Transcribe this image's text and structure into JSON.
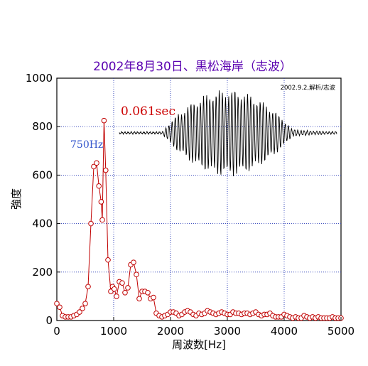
{
  "chart_data": {
    "type": "line",
    "title": "2002年8月30日、黒松海岸（志波）",
    "credit": "2002.9.2,解析/志波",
    "xlabel": "周波数[Hz]",
    "ylabel": "強度",
    "xlim": [
      0,
      5000
    ],
    "ylim": [
      0,
      1000
    ],
    "xticks": [
      0,
      1000,
      2000,
      3000,
      4000,
      5000
    ],
    "yticks": [
      0,
      200,
      400,
      600,
      800,
      1000
    ],
    "xtick_labels": [
      "0",
      "1000",
      "2000",
      "3000",
      "4000",
      "5000"
    ],
    "ytick_labels": [
      "0",
      "200",
      "400",
      "600",
      "800",
      "1000"
    ],
    "grid": true,
    "grid_style": "dotted",
    "grid_color": "#2a3cb8",
    "series": [
      {
        "color": "#c00000",
        "marker": "open-circle",
        "x": [
          0,
          50,
          100,
          150,
          200,
          250,
          300,
          350,
          400,
          450,
          500,
          550,
          600,
          650,
          700,
          740,
          780,
          800,
          830,
          860,
          900,
          950,
          980,
          1010,
          1050,
          1100,
          1150,
          1200,
          1250,
          1300,
          1350,
          1400,
          1450,
          1500,
          1550,
          1600,
          1650,
          1700,
          1750,
          1800,
          1850,
          1900,
          1950,
          2000,
          2050,
          2100,
          2150,
          2200,
          2250,
          2300,
          2350,
          2400,
          2450,
          2500,
          2550,
          2600,
          2650,
          2700,
          2750,
          2800,
          2850,
          2900,
          2950,
          3000,
          3050,
          3100,
          3150,
          3200,
          3250,
          3300,
          3350,
          3400,
          3450,
          3500,
          3550,
          3600,
          3650,
          3700,
          3750,
          3800,
          3850,
          3900,
          3950,
          4000,
          4050,
          4100,
          4150,
          4200,
          4250,
          4300,
          4350,
          4400,
          4450,
          4500,
          4550,
          4600,
          4650,
          4700,
          4750,
          4800,
          4850,
          4900,
          4950,
          5000
        ],
        "values": [
          70,
          55,
          20,
          15,
          15,
          15,
          20,
          25,
          35,
          50,
          70,
          140,
          400,
          635,
          650,
          555,
          490,
          415,
          825,
          620,
          250,
          120,
          140,
          130,
          100,
          160,
          155,
          115,
          135,
          230,
          240,
          190,
          90,
          120,
          120,
          115,
          90,
          95,
          30,
          20,
          15,
          20,
          25,
          35,
          35,
          30,
          20,
          25,
          35,
          40,
          35,
          25,
          20,
          30,
          25,
          30,
          40,
          35,
          30,
          25,
          30,
          35,
          30,
          25,
          25,
          35,
          30,
          30,
          25,
          30,
          30,
          25,
          30,
          35,
          25,
          20,
          25,
          25,
          30,
          20,
          15,
          15,
          15,
          25,
          20,
          15,
          10,
          15,
          10,
          10,
          20,
          15,
          10,
          15,
          10,
          15,
          10,
          10,
          10,
          10,
          15,
          10,
          10,
          10
        ]
      }
    ],
    "annotations": [
      {
        "text": "0.061sec"
      },
      {
        "text": "750Hz"
      }
    ]
  }
}
